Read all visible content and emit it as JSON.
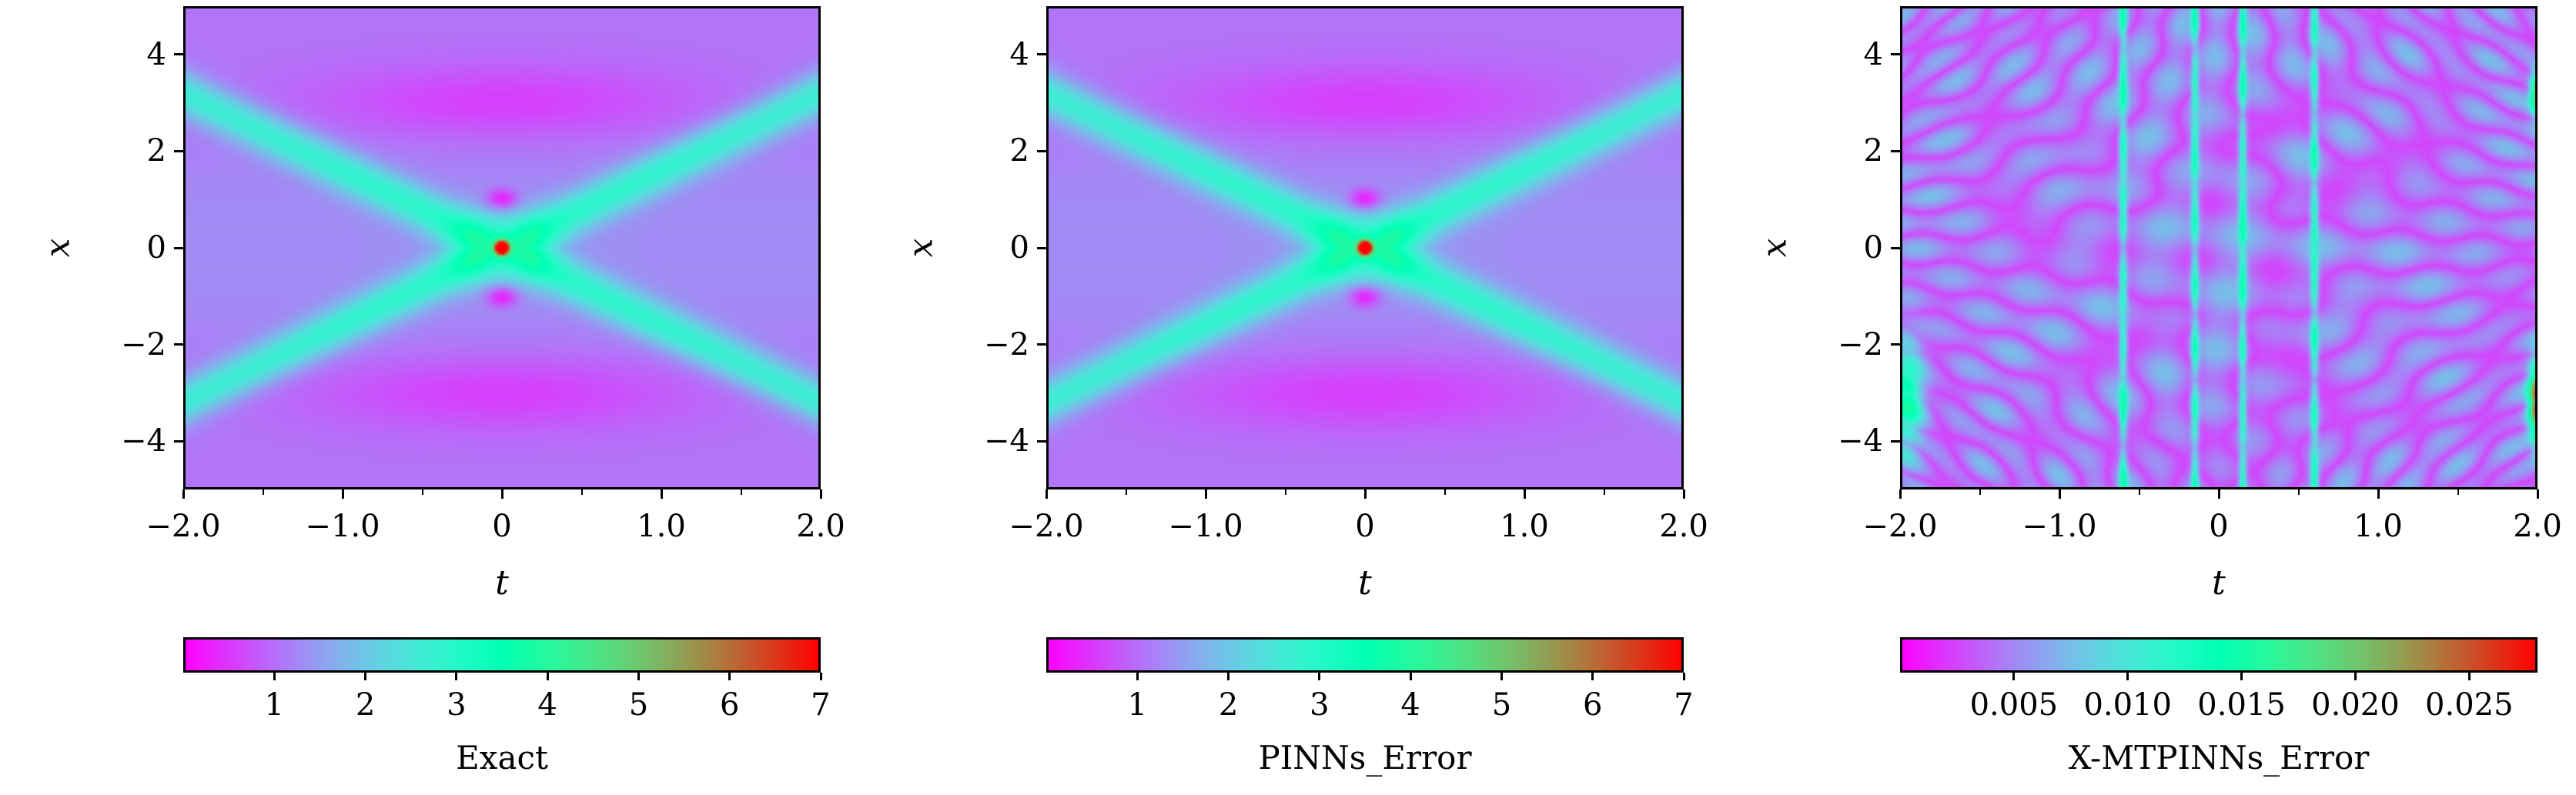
{
  "chart_data": [
    {
      "type": "heatmap",
      "title": "",
      "xlabel": "t",
      "ylabel": "x",
      "xlim": [
        -2.0,
        2.0
      ],
      "ylim": [
        -5,
        5
      ],
      "x_ticks": [
        "−2.0",
        "−1.0",
        "0",
        "1.0",
        "2.0"
      ],
      "y_ticks": [
        "−4",
        "−2",
        "0",
        "2",
        "4"
      ],
      "colormap": "rainbow",
      "colorbar": {
        "label": "Exact",
        "range": [
          0,
          7
        ],
        "ticks": [
          "1",
          "2",
          "3",
          "4",
          "5",
          "6",
          "7"
        ],
        "tick_values": [
          1,
          2,
          3,
          4,
          5,
          6,
          7
        ]
      },
      "field": {
        "kind": "solution",
        "peak": 7.0,
        "peak_at": {
          "t": 0,
          "x": 0
        }
      }
    },
    {
      "type": "heatmap",
      "title": "",
      "xlabel": "t",
      "ylabel": "x",
      "xlim": [
        -2.0,
        2.0
      ],
      "ylim": [
        -5,
        5
      ],
      "x_ticks": [
        "−2.0",
        "−1.0",
        "0",
        "1.0",
        "2.0"
      ],
      "y_ticks": [
        "−4",
        "−2",
        "0",
        "2",
        "4"
      ],
      "colormap": "rainbow",
      "colorbar": {
        "label": "PINNs_Error",
        "range": [
          0,
          7
        ],
        "ticks": [
          "1",
          "2",
          "3",
          "4",
          "5",
          "6",
          "7"
        ],
        "tick_values": [
          1,
          2,
          3,
          4,
          5,
          6,
          7
        ]
      },
      "field": {
        "kind": "solution",
        "peak": 7.0,
        "peak_at": {
          "t": 0,
          "x": 0
        }
      }
    },
    {
      "type": "heatmap",
      "title": "",
      "xlabel": "t",
      "ylabel": "x",
      "xlim": [
        -2.0,
        2.0
      ],
      "ylim": [
        -5,
        5
      ],
      "x_ticks": [
        "−2.0",
        "−1.0",
        "0",
        "1.0",
        "2.0"
      ],
      "y_ticks": [
        "−4",
        "−2",
        "0",
        "2",
        "4"
      ],
      "colormap": "rainbow",
      "colorbar": {
        "label": "X-MTPINNs_Error",
        "range": [
          0,
          0.028
        ],
        "ticks": [
          "0.005",
          "0.010",
          "0.015",
          "0.020",
          "0.025"
        ],
        "tick_values": [
          0.005,
          0.01,
          0.015,
          0.02,
          0.025
        ]
      },
      "field": {
        "kind": "error",
        "peak": 0.028,
        "subdomain_boundaries_t": [
          -0.6,
          -0.15,
          0.15,
          0.6
        ]
      }
    }
  ]
}
